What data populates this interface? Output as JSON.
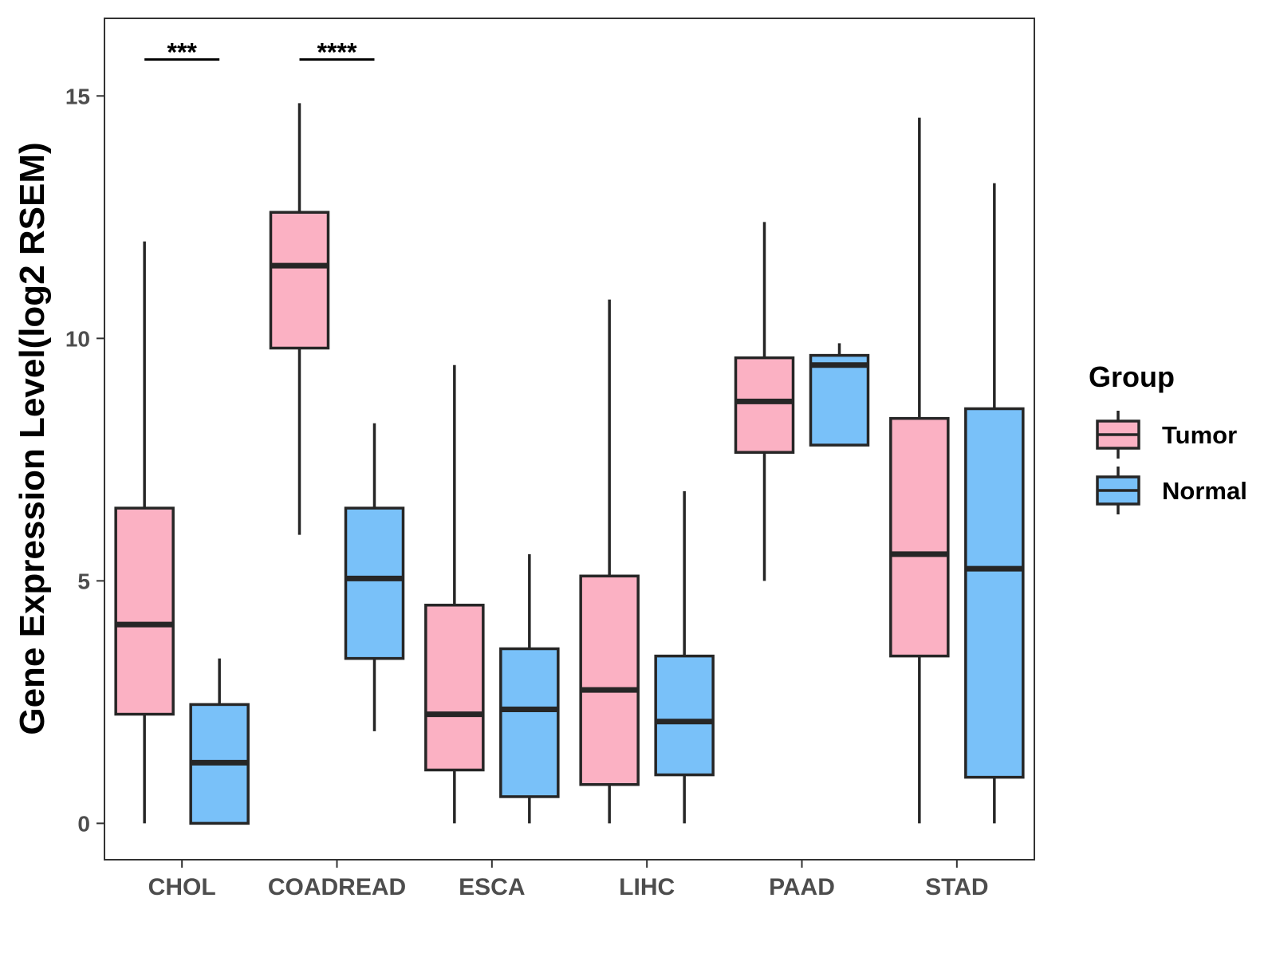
{
  "chart_data": {
    "type": "boxplot",
    "title": "",
    "xlabel": "",
    "ylabel": "Gene Expression Level(log2 RSEM)",
    "ylim": [
      -0.75,
      16.6
    ],
    "yticks": [
      0,
      5,
      10,
      15
    ],
    "categories": [
      "CHOL",
      "COADREAD",
      "ESCA",
      "LIHC",
      "PAAD",
      "STAD"
    ],
    "legend": {
      "title": "Group",
      "position": "right",
      "entries": [
        {
          "name": "Tumor",
          "color": "#FBB1C3"
        },
        {
          "name": "Normal",
          "color": "#79C1F9"
        }
      ]
    },
    "series": [
      {
        "name": "Tumor",
        "color": "#FBB1C3",
        "boxes": [
          {
            "category": "CHOL",
            "min": 0,
            "q1": 2.25,
            "median": 4.1,
            "q3": 6.5,
            "max": 12
          },
          {
            "category": "COADREAD",
            "min": 5.95,
            "q1": 9.8,
            "median": 11.5,
            "q3": 12.6,
            "max": 14.85
          },
          {
            "category": "ESCA",
            "min": 0,
            "q1": 1.1,
            "median": 2.25,
            "q3": 4.5,
            "max": 9.45
          },
          {
            "category": "LIHC",
            "min": 0,
            "q1": 0.8,
            "median": 2.75,
            "q3": 5.1,
            "max": 10.8
          },
          {
            "category": "PAAD",
            "min": 5,
            "q1": 7.65,
            "median": 8.7,
            "q3": 9.6,
            "max": 12.4
          },
          {
            "category": "STAD",
            "min": 0,
            "q1": 3.45,
            "median": 5.55,
            "q3": 8.35,
            "max": 14.55
          }
        ]
      },
      {
        "name": "Normal",
        "color": "#79C1F9",
        "boxes": [
          {
            "category": "CHOL",
            "min": 0,
            "q1": 0,
            "median": 1.25,
            "q3": 2.45,
            "max": 3.4
          },
          {
            "category": "COADREAD",
            "min": 1.9,
            "q1": 3.4,
            "median": 5.05,
            "q3": 6.5,
            "max": 8.25
          },
          {
            "category": "ESCA",
            "min": 0,
            "q1": 0.55,
            "median": 2.35,
            "q3": 3.6,
            "max": 5.55
          },
          {
            "category": "LIHC",
            "min": 0,
            "q1": 1,
            "median": 2.1,
            "q3": 3.45,
            "max": 6.85
          },
          {
            "category": "PAAD",
            "min": 7.8,
            "q1": 7.8,
            "median": 9.45,
            "q3": 9.65,
            "max": 9.9
          },
          {
            "category": "STAD",
            "min": 0,
            "q1": 0.95,
            "median": 5.25,
            "q3": 8.55,
            "max": 13.2
          }
        ]
      }
    ],
    "annotations": [
      {
        "category": "CHOL",
        "label": "***",
        "y": 15.75
      },
      {
        "category": "COADREAD",
        "label": "****",
        "y": 15.75
      }
    ]
  }
}
